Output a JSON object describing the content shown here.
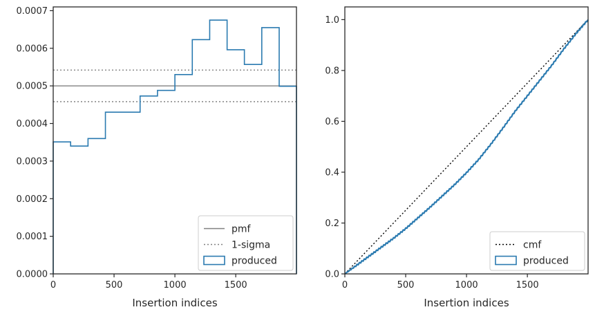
{
  "chart_data": [
    {
      "type": "step-histogram",
      "xlabel": "Insertion indices",
      "ylabel": "",
      "xlim": [
        0,
        1999
      ],
      "ylim": [
        0,
        0.00071
      ],
      "xticks": [
        0,
        500,
        1000,
        1500
      ],
      "xtick_labels": [
        "0",
        "500",
        "1000",
        "1500"
      ],
      "yticks": [
        0,
        0.0001,
        0.0002,
        0.0003,
        0.0004,
        0.0005,
        0.0006,
        0.0007
      ],
      "ytick_labels": [
        "0.0000",
        "0.0001",
        "0.0002",
        "0.0003",
        "0.0004",
        "0.0005",
        "0.0006",
        "0.0007"
      ],
      "bin_edges": [
        0,
        143,
        286,
        429,
        571,
        714,
        857,
        1000,
        1143,
        1286,
        1429,
        1571,
        1714,
        1857,
        1999
      ],
      "series": [
        {
          "name": "produced",
          "style": "step",
          "color": "#2a7ab0",
          "values": [
            0.000351,
            0.00034,
            0.00036,
            0.00043,
            0.00043,
            0.000473,
            0.000488,
            0.00053,
            0.000623,
            0.000675,
            0.000596,
            0.000557,
            0.000655,
            0.000499
          ]
        }
      ],
      "hlines": [
        {
          "name": "pmf",
          "y": 0.0005,
          "color": "#808080",
          "dash": "solid"
        },
        {
          "name": "1-sigma",
          "y": 0.000542,
          "color": "#808080",
          "dash": "dotted"
        },
        {
          "name": "",
          "y": 0.000458,
          "color": "#808080",
          "dash": "dotted"
        }
      ],
      "legend": {
        "placement": "lower-right",
        "entries": [
          "pmf",
          "1-sigma",
          "produced"
        ]
      },
      "grid": false
    },
    {
      "type": "line",
      "xlabel": "Insertion indices",
      "ylabel": "",
      "xlim": [
        0,
        1999
      ],
      "ylim": [
        0,
        1.05
      ],
      "xticks": [
        0,
        500,
        1000,
        1500
      ],
      "xtick_labels": [
        "0",
        "500",
        "1000",
        "1500"
      ],
      "yticks": [
        0,
        0.2,
        0.4,
        0.6,
        0.8,
        1.0
      ],
      "ytick_labels": [
        "0.0",
        "0.2",
        "0.4",
        "0.6",
        "0.8",
        "1.0"
      ],
      "series": [
        {
          "name": "cmf",
          "color": "#000000",
          "dash": "dotted",
          "x": [
            0,
            1999
          ],
          "y": [
            0,
            1.0
          ]
        },
        {
          "name": "produced",
          "color": "#2a7ab0",
          "dash": "solid",
          "x": [
            0,
            100,
            200,
            300,
            400,
            500,
            600,
            700,
            800,
            900,
            1000,
            1100,
            1200,
            1300,
            1400,
            1500,
            1600,
            1700,
            1800,
            1900,
            1999
          ],
          "y": [
            0,
            0.035,
            0.07,
            0.105,
            0.14,
            0.178,
            0.22,
            0.262,
            0.306,
            0.35,
            0.398,
            0.45,
            0.51,
            0.574,
            0.64,
            0.7,
            0.76,
            0.82,
            0.885,
            0.945,
            1.0
          ]
        }
      ],
      "legend": {
        "placement": "lower-right",
        "entries": [
          "cmf",
          "produced"
        ]
      },
      "grid": false
    }
  ]
}
